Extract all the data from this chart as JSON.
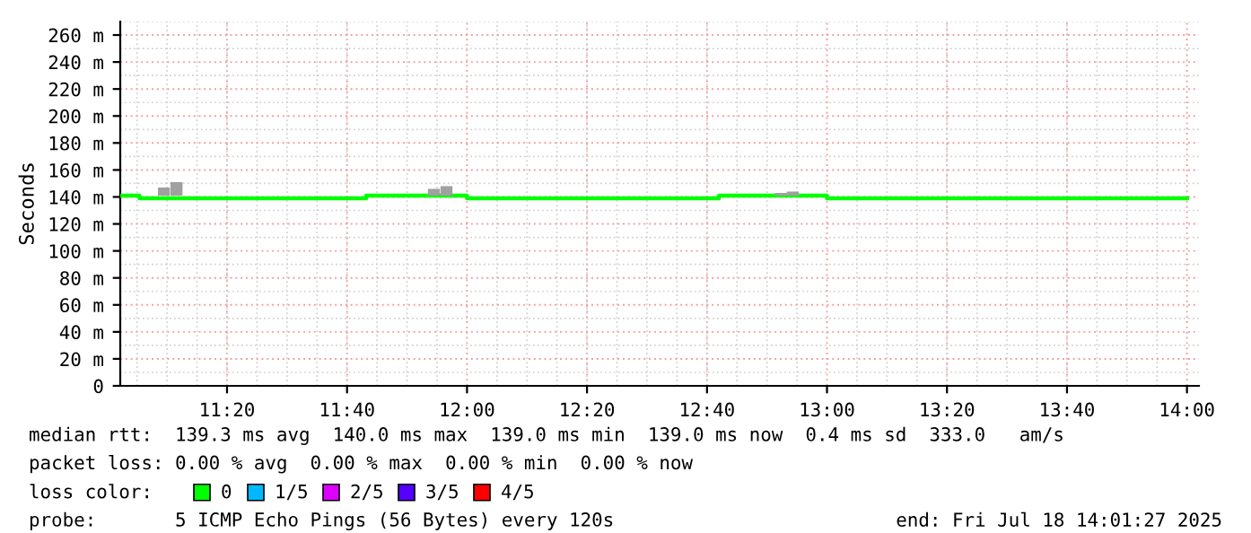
{
  "chart_data": {
    "type": "step",
    "ylabel": "Seconds",
    "xlim": [
      11.0367,
      14.0333
    ],
    "ylim": [
      0,
      270
    ],
    "xticks": [
      {
        "value": 11.3333,
        "label": "11:20"
      },
      {
        "value": 11.6667,
        "label": "11:40"
      },
      {
        "value": 12.0,
        "label": "12:00"
      },
      {
        "value": 12.3333,
        "label": "12:20"
      },
      {
        "value": 12.6667,
        "label": "12:40"
      },
      {
        "value": 13.0,
        "label": "13:00"
      },
      {
        "value": 13.3333,
        "label": "13:20"
      },
      {
        "value": 13.6667,
        "label": "13:40"
      },
      {
        "value": 14.0,
        "label": "14:00"
      }
    ],
    "yticks": [
      0,
      {
        "value": 20,
        "label": "20 m"
      },
      {
        "value": 40,
        "label": "40 m"
      },
      {
        "value": 60,
        "label": "60 m"
      },
      {
        "value": 80,
        "label": "80 m"
      },
      {
        "value": 100,
        "label": "100 m"
      },
      {
        "value": 120,
        "label": "120 m"
      },
      {
        "value": 140,
        "label": "140 m"
      },
      {
        "value": 160,
        "label": "160 m"
      },
      {
        "value": 180,
        "label": "180 m"
      },
      {
        "value": 200,
        "label": "200 m"
      },
      {
        "value": 220,
        "label": "220 m"
      },
      {
        "value": 240,
        "label": "240 m"
      },
      {
        "value": 260,
        "label": "260 m"
      }
    ],
    "grid": true,
    "legend": "bottom",
    "legend_title": "loss color:",
    "series": [
      {
        "type": "bar",
        "color": "#a0a0a0",
        "x": [
          11.158,
          11.193,
          11.908,
          11.943,
          12.872,
          12.905
        ],
        "base": [
          141,
          141,
          141,
          141,
          141,
          141
        ],
        "values": [
          6,
          10,
          5,
          7,
          2,
          3
        ]
      },
      {
        "color": "#00ff00",
        "x": [
          11.0367,
          11.09,
          11.72,
          12.0,
          12.7,
          13.0,
          14.0
        ],
        "values": [
          141,
          139,
          141,
          139,
          141,
          139,
          139
        ]
      },
      {
        "type": "bar",
        "name": "0",
        "color": "#00ff00"
      },
      {
        "type": "bar",
        "name": "1/5",
        "color": "#00b8ff"
      },
      {
        "type": "bar",
        "name": "2/5",
        "color": "#dd00ff"
      },
      {
        "type": "bar",
        "name": "3/5",
        "color": "#5500ff"
      },
      {
        "type": "bar",
        "name": "4/5",
        "color": "#ff0000"
      }
    ],
    "annotations": [
      "median rtt:  139.3 ms avg  140.0 ms max  139.0 ms min  139.0 ms now  0.4 ms sd  333.0   am/s",
      "packet loss: 0.00 % avg  0.00 % max  0.00 % min  0.00 % now",
      "probe:       5 ICMP Echo Pings (56 Bytes) every 120s",
      "end: Fri Jul 18 14:01:27 2025"
    ]
  }
}
